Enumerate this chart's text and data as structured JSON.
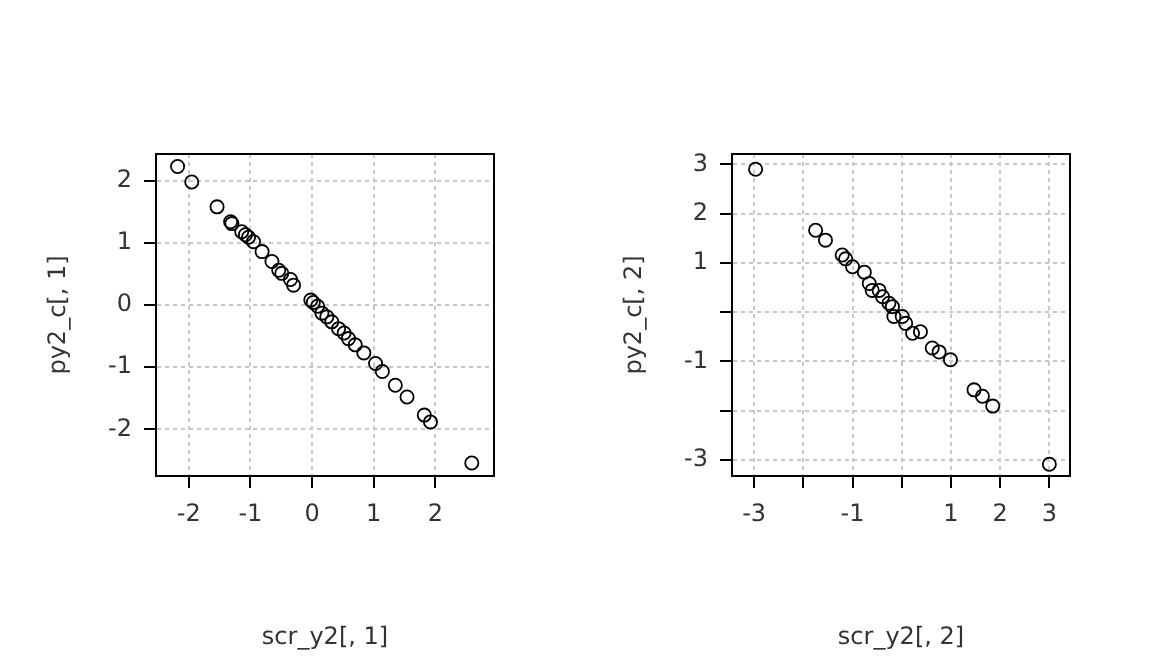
{
  "chart_data": [
    {
      "type": "scatter",
      "xlabel": "scr_y2[, 1]",
      "ylabel": "py2_c[, 1]",
      "xlim": [
        -2.53,
        2.95
      ],
      "ylim": [
        -2.75,
        2.43
      ],
      "xticks": [
        -2,
        -1,
        0,
        1,
        2
      ],
      "yticks": [
        -2,
        -1,
        0,
        1,
        2
      ],
      "grid": true,
      "marker": "circle",
      "series": [
        {
          "color": "#000000",
          "x": [
            -2.18,
            -1.95,
            -1.54,
            -1.32,
            -1.3,
            -1.14,
            -1.08,
            -1.03,
            -0.95,
            -0.81,
            -0.65,
            -0.54,
            -0.49,
            -0.35,
            -0.3,
            -0.02,
            0.02,
            0.09,
            0.16,
            0.24,
            0.32,
            0.43,
            0.52,
            0.59,
            0.7,
            0.84,
            1.03,
            1.14,
            1.35,
            1.54,
            1.82,
            1.92,
            2.59
          ],
          "values": [
            2.23,
            1.98,
            1.58,
            1.34,
            1.31,
            1.18,
            1.13,
            1.09,
            1.02,
            0.86,
            0.7,
            0.56,
            0.51,
            0.41,
            0.32,
            0.08,
            0.04,
            -0.02,
            -0.13,
            -0.19,
            -0.27,
            -0.38,
            -0.45,
            -0.54,
            -0.64,
            -0.77,
            -0.94,
            -1.07,
            -1.29,
            -1.48,
            -1.77,
            -1.88,
            -2.54
          ]
        }
      ]
    },
    {
      "type": "scatter",
      "xlabel": "scr_y2[, 2]",
      "ylabel": "py2_c[, 2]",
      "xlim": [
        -3.45,
        3.42
      ],
      "ylim": [
        -3.33,
        3.21
      ],
      "xticks": [
        -3,
        {
          "value": -2,
          "label": null
        },
        -1,
        {
          "value": 0,
          "label": null
        },
        1,
        2,
        3
      ],
      "yticks": [
        -3,
        {
          "value": -2,
          "label": null
        },
        -1,
        {
          "value": 0,
          "label": null
        },
        1,
        2,
        3
      ],
      "grid": true,
      "marker": "circle",
      "series": [
        {
          "color": "#000000",
          "x": [
            -2.97,
            -1.75,
            -1.55,
            -1.21,
            -1.14,
            -1.0,
            -0.76,
            -0.66,
            -0.6,
            -0.46,
            -0.39,
            -0.26,
            -0.19,
            -0.16,
            0.01,
            0.08,
            0.22,
            0.38,
            0.62,
            0.76,
            0.99,
            1.47,
            1.64,
            1.85,
            3.0
          ],
          "values": [
            2.9,
            1.66,
            1.46,
            1.16,
            1.08,
            0.92,
            0.81,
            0.58,
            0.44,
            0.44,
            0.31,
            0.18,
            0.11,
            -0.09,
            -0.09,
            -0.23,
            -0.43,
            -0.4,
            -0.73,
            -0.81,
            -0.97,
            -1.58,
            -1.71,
            -1.91,
            -3.09
          ]
        }
      ]
    }
  ]
}
